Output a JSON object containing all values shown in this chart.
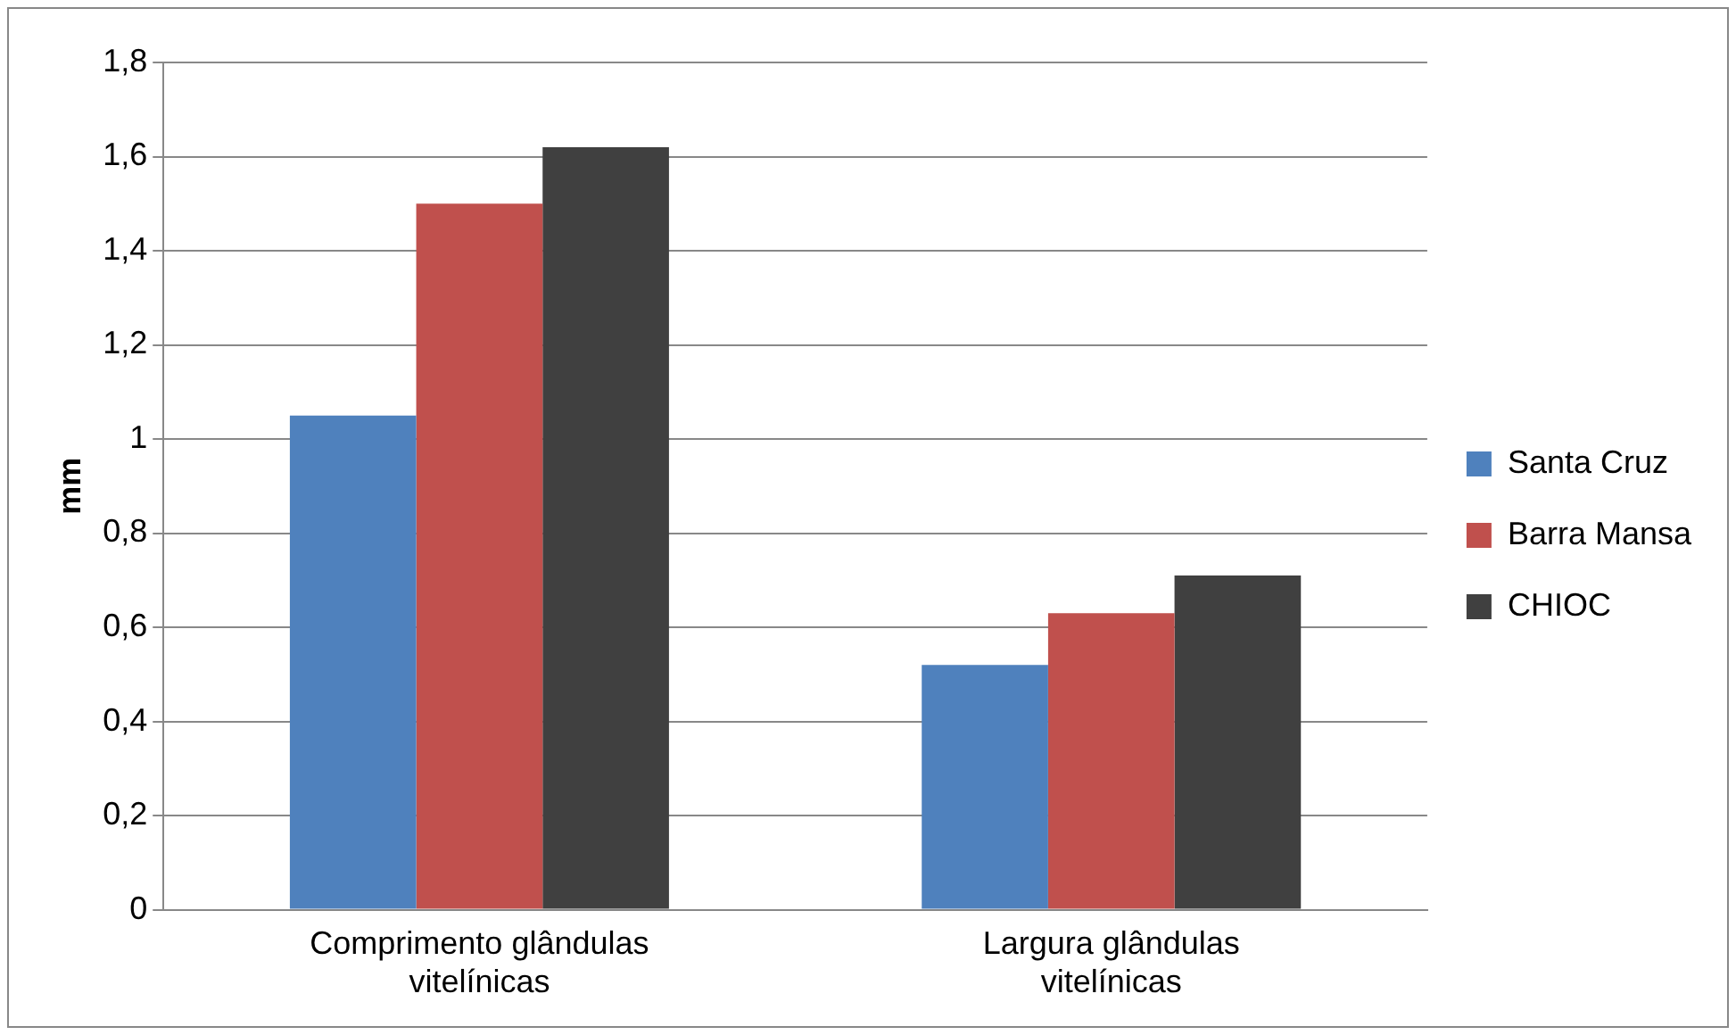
{
  "chart_data": {
    "type": "bar",
    "ylabel": "mm",
    "categories": [
      "Comprimento glândulas vitelínicas",
      "Largura glândulas vitelínicas"
    ],
    "series": [
      {
        "name": "Santa Cruz",
        "color": "#4f81bd",
        "values": [
          1.05,
          0.52
        ]
      },
      {
        "name": "Barra Mansa",
        "color": "#c0504d",
        "values": [
          1.5,
          0.63
        ]
      },
      {
        "name": "CHIOC",
        "color": "#404040",
        "values": [
          1.62,
          0.71
        ]
      }
    ],
    "ylim": [
      0,
      1.8
    ],
    "yticks": [
      0,
      {
        "value": 0.2,
        "label": "0,2"
      },
      {
        "value": 0.4,
        "label": "0,4"
      },
      {
        "value": 0.6,
        "label": "0,6"
      },
      {
        "value": 0.8,
        "label": "0,8"
      },
      1,
      {
        "value": 1.2,
        "label": "1,2"
      },
      {
        "value": 1.4,
        "label": "1,4"
      },
      {
        "value": 1.6,
        "label": "1,6"
      },
      {
        "value": 1.8,
        "label": "1,8"
      }
    ],
    "grid": "y",
    "legend": "right"
  }
}
